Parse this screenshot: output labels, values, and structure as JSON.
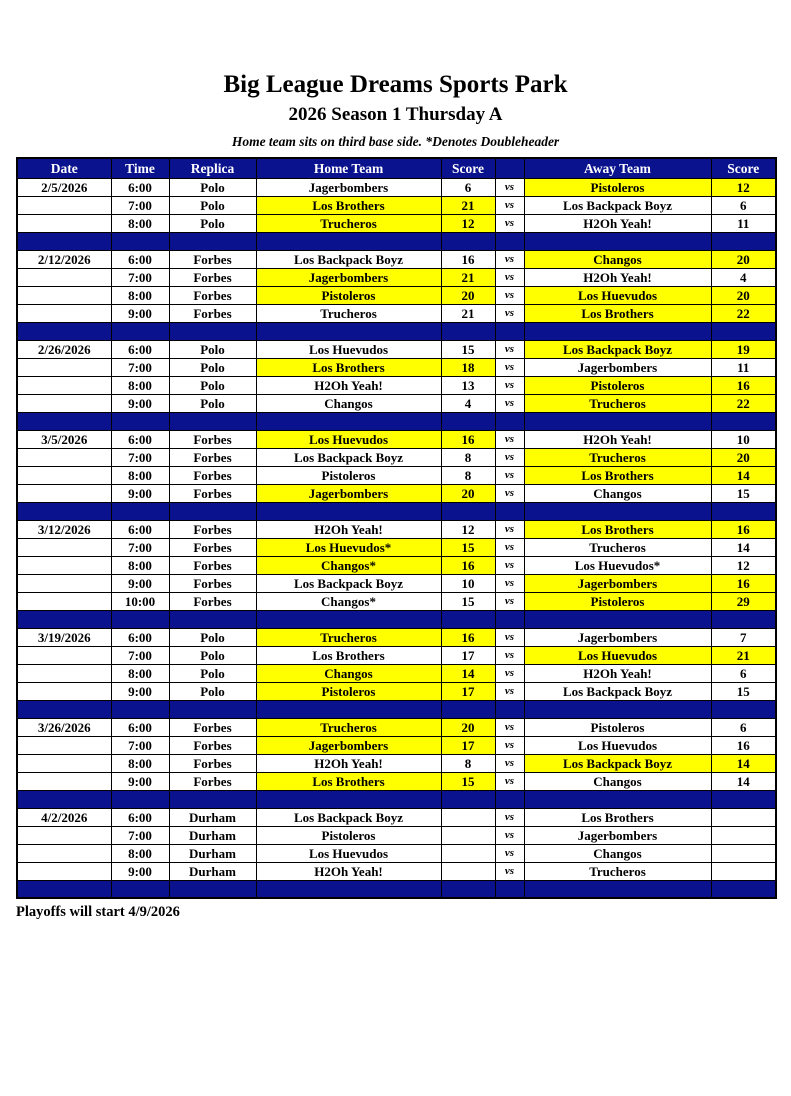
{
  "page": {
    "title": "Big League Dreams Sports Park",
    "subtitle": "2026 Season 1 Thursday A",
    "note": "Home team sits on third base side.  *Denotes Doubleheader",
    "footer": "Playoffs will start 4/9/2026"
  },
  "colors": {
    "navy": "#0a128e",
    "highlight_yellow": "#ffff00",
    "header_text": "#ffffff",
    "border": "#000000"
  },
  "table": {
    "columns": [
      "Date",
      "Time",
      "Replica",
      "Home Team",
      "Score",
      "",
      "Away Team",
      "Score"
    ],
    "vs_label": "vs",
    "blocks": [
      {
        "date": "2/5/2026",
        "games": [
          {
            "time": "6:00",
            "replica": "Polo",
            "home": "Jagerbombers",
            "home_score": "6",
            "home_win": false,
            "away": "Pistoleros",
            "away_score": "12",
            "away_win": true
          },
          {
            "time": "7:00",
            "replica": "Polo",
            "home": "Los Brothers",
            "home_score": "21",
            "home_win": true,
            "away": "Los Backpack Boyz",
            "away_score": "6",
            "away_win": false
          },
          {
            "time": "8:00",
            "replica": "Polo",
            "home": "Trucheros",
            "home_score": "12",
            "home_win": true,
            "away": "H2Oh Yeah!",
            "away_score": "11",
            "away_win": false
          }
        ]
      },
      {
        "date": "2/12/2026",
        "games": [
          {
            "time": "6:00",
            "replica": "Forbes",
            "home": "Los Backpack Boyz",
            "home_score": "16",
            "home_win": false,
            "away": "Changos",
            "away_score": "20",
            "away_win": true
          },
          {
            "time": "7:00",
            "replica": "Forbes",
            "home": "Jagerbombers",
            "home_score": "21",
            "home_win": true,
            "away": "H2Oh Yeah!",
            "away_score": "4",
            "away_win": false
          },
          {
            "time": "8:00",
            "replica": "Forbes",
            "home": "Pistoleros",
            "home_score": "20",
            "home_win": true,
            "away": "Los Huevudos",
            "away_score": "20",
            "away_win": true
          },
          {
            "time": "9:00",
            "replica": "Forbes",
            "home": "Trucheros",
            "home_score": "21",
            "home_win": false,
            "away": "Los Brothers",
            "away_score": "22",
            "away_win": true
          }
        ]
      },
      {
        "date": "2/26/2026",
        "games": [
          {
            "time": "6:00",
            "replica": "Polo",
            "home": "Los Huevudos",
            "home_score": "15",
            "home_win": false,
            "away": "Los Backpack Boyz",
            "away_score": "19",
            "away_win": true
          },
          {
            "time": "7:00",
            "replica": "Polo",
            "home": "Los Brothers",
            "home_score": "18",
            "home_win": true,
            "away": "Jagerbombers",
            "away_score": "11",
            "away_win": false
          },
          {
            "time": "8:00",
            "replica": "Polo",
            "home": "H2Oh Yeah!",
            "home_score": "13",
            "home_win": false,
            "away": "Pistoleros",
            "away_score": "16",
            "away_win": true
          },
          {
            "time": "9:00",
            "replica": "Polo",
            "home": "Changos",
            "home_score": "4",
            "home_win": false,
            "away": "Trucheros",
            "away_score": "22",
            "away_win": true
          }
        ]
      },
      {
        "date": "3/5/2026",
        "games": [
          {
            "time": "6:00",
            "replica": "Forbes",
            "home": "Los Huevudos",
            "home_score": "16",
            "home_win": true,
            "away": "H2Oh Yeah!",
            "away_score": "10",
            "away_win": false
          },
          {
            "time": "7:00",
            "replica": "Forbes",
            "home": "Los Backpack Boyz",
            "home_score": "8",
            "home_win": false,
            "away": "Trucheros",
            "away_score": "20",
            "away_win": true
          },
          {
            "time": "8:00",
            "replica": "Forbes",
            "home": "Pistoleros",
            "home_score": "8",
            "home_win": false,
            "away": "Los Brothers",
            "away_score": "14",
            "away_win": true
          },
          {
            "time": "9:00",
            "replica": "Forbes",
            "home": "Jagerbombers",
            "home_score": "20",
            "home_win": true,
            "away": "Changos",
            "away_score": "15",
            "away_win": false
          }
        ]
      },
      {
        "date": "3/12/2026",
        "games": [
          {
            "time": "6:00",
            "replica": "Forbes",
            "home": "H2Oh Yeah!",
            "home_score": "12",
            "home_win": false,
            "away": "Los Brothers",
            "away_score": "16",
            "away_win": true
          },
          {
            "time": "7:00",
            "replica": "Forbes",
            "home": "Los Huevudos*",
            "home_score": "15",
            "home_win": true,
            "away": "Trucheros",
            "away_score": "14",
            "away_win": false
          },
          {
            "time": "8:00",
            "replica": "Forbes",
            "home": "Changos*",
            "home_score": "16",
            "home_win": true,
            "away": "Los Huevudos*",
            "away_score": "12",
            "away_win": false
          },
          {
            "time": "9:00",
            "replica": "Forbes",
            "home": "Los Backpack Boyz",
            "home_score": "10",
            "home_win": false,
            "away": "Jagerbombers",
            "away_score": "16",
            "away_win": true
          },
          {
            "time": "10:00",
            "replica": "Forbes",
            "home": "Changos*",
            "home_score": "15",
            "home_win": false,
            "away": "Pistoleros",
            "away_score": "29",
            "away_win": true
          }
        ]
      },
      {
        "date": "3/19/2026",
        "games": [
          {
            "time": "6:00",
            "replica": "Polo",
            "home": "Trucheros",
            "home_score": "16",
            "home_win": true,
            "away": "Jagerbombers",
            "away_score": "7",
            "away_win": false
          },
          {
            "time": "7:00",
            "replica": "Polo",
            "home": "Los Brothers",
            "home_score": "17",
            "home_win": false,
            "away": "Los Huevudos",
            "away_score": "21",
            "away_win": true
          },
          {
            "time": "8:00",
            "replica": "Polo",
            "home": "Changos",
            "home_score": "14",
            "home_win": true,
            "away": "H2Oh Yeah!",
            "away_score": "6",
            "away_win": false
          },
          {
            "time": "9:00",
            "replica": "Polo",
            "home": "Pistoleros",
            "home_score": "17",
            "home_win": true,
            "away": "Los Backpack Boyz",
            "away_score": "15",
            "away_win": false
          }
        ]
      },
      {
        "date": "3/26/2026",
        "games": [
          {
            "time": "6:00",
            "replica": "Forbes",
            "home": "Trucheros",
            "home_score": "20",
            "home_win": true,
            "away": "Pistoleros",
            "away_score": "6",
            "away_win": false
          },
          {
            "time": "7:00",
            "replica": "Forbes",
            "home": "Jagerbombers",
            "home_score": "17",
            "home_win": true,
            "away": "Los Huevudos",
            "away_score": "16",
            "away_win": false
          },
          {
            "time": "8:00",
            "replica": "Forbes",
            "home": "H2Oh Yeah!",
            "home_score": "8",
            "home_win": false,
            "away": "Los Backpack Boyz",
            "away_score": "14",
            "away_win": true
          },
          {
            "time": "9:00",
            "replica": "Forbes",
            "home": "Los Brothers",
            "home_score": "15",
            "home_win": true,
            "away": "Changos",
            "away_score": "14",
            "away_win": false
          }
        ]
      },
      {
        "date": "4/2/2026",
        "games": [
          {
            "time": "6:00",
            "replica": "Durham",
            "home": "Los Backpack Boyz",
            "home_score": "",
            "home_win": false,
            "away": "Los Brothers",
            "away_score": "",
            "away_win": false
          },
          {
            "time": "7:00",
            "replica": "Durham",
            "home": "Pistoleros",
            "home_score": "",
            "home_win": false,
            "away": "Jagerbombers",
            "away_score": "",
            "away_win": false
          },
          {
            "time": "8:00",
            "replica": "Durham",
            "home": "Los Huevudos",
            "home_score": "",
            "home_win": false,
            "away": "Changos",
            "away_score": "",
            "away_win": false
          },
          {
            "time": "9:00",
            "replica": "Durham",
            "home": "H2Oh Yeah!",
            "home_score": "",
            "home_win": false,
            "away": "Trucheros",
            "away_score": "",
            "away_win": false
          }
        ]
      }
    ]
  }
}
